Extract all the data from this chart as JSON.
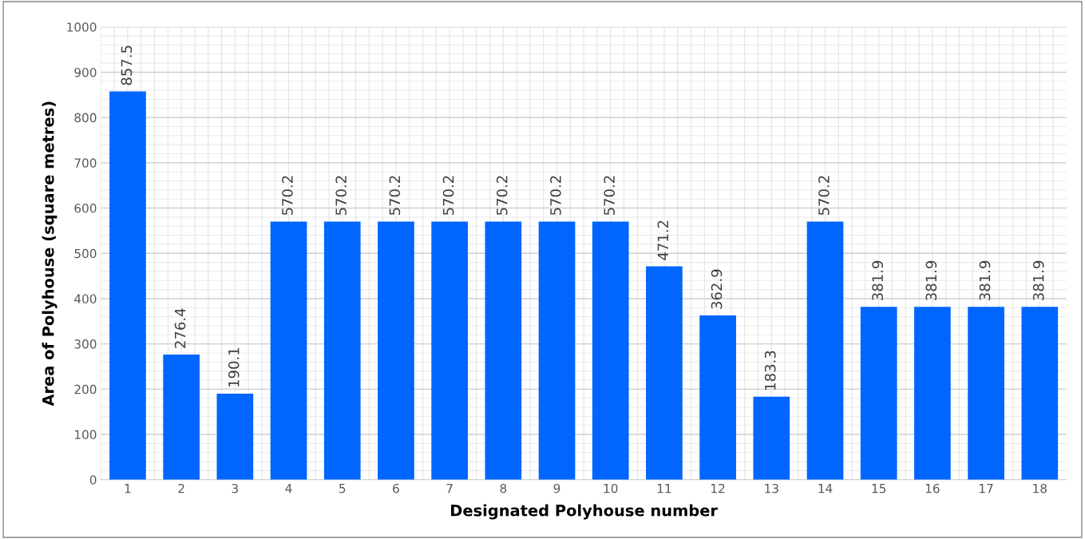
{
  "chart_data": {
    "type": "bar",
    "xlabel": "Designated Polyhouse number",
    "ylabel": "Area of Polyhouse (square metres)",
    "categories": [
      "1",
      "2",
      "3",
      "4",
      "5",
      "6",
      "7",
      "8",
      "9",
      "10",
      "11",
      "12",
      "13",
      "14",
      "15",
      "16",
      "17",
      "18"
    ],
    "values": [
      857.5,
      276.4,
      190.1,
      570.2,
      570.2,
      570.2,
      570.2,
      570.2,
      570.2,
      570.2,
      471.2,
      362.9,
      183.3,
      570.2,
      381.9,
      381.9,
      381.9,
      381.9
    ],
    "color": "#0066ff",
    "ylim": [
      0,
      1000
    ],
    "yticks": [
      0,
      100,
      200,
      300,
      400,
      500,
      600,
      700,
      800,
      900,
      1000
    ],
    "grid": true,
    "data_labels": true
  }
}
